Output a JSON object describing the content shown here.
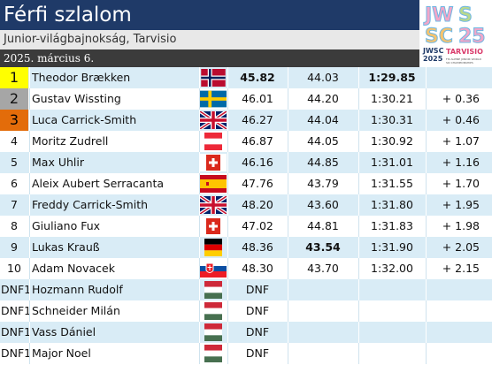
{
  "title": "Férfi szlalom",
  "subtitle": "Junior-világbajnokság, Tarvisio",
  "date": "2025. március 6.",
  "logo": {
    "top": "JWSC25",
    "line1": "JWSC",
    "line2": "2025",
    "text": "TARVISIO",
    "text2": "FIS ALPINE JUNIOR WORLD SKI CHAMPIONSHIPS"
  },
  "results": [
    {
      "rank": "1",
      "name": "Theodor Brækken",
      "flag": "norway",
      "run1": "45.82",
      "run2": "44.03",
      "total": "1:29.85",
      "diff": ""
    },
    {
      "rank": "2",
      "name": "Gustav Wissting",
      "flag": "sweden",
      "run1": "46.01",
      "run2": "44.20",
      "total": "1:30.21",
      "diff": "+ 0.36"
    },
    {
      "rank": "3",
      "name": "Luca Carrick-Smith",
      "flag": "uk",
      "run1": "46.27",
      "run2": "44.04",
      "total": "1:30.31",
      "diff": "+ 0.46"
    },
    {
      "rank": "4",
      "name": "Moritz Zudrell",
      "flag": "austria",
      "run1": "46.87",
      "run2": "44.05",
      "total": "1:30.92",
      "diff": "+ 1.07"
    },
    {
      "rank": "5",
      "name": "Max Uhlir",
      "flag": "switzerland",
      "run1": "46.16",
      "run2": "44.85",
      "total": "1:31.01",
      "diff": "+ 1.16"
    },
    {
      "rank": "6",
      "name": "Aleix Aubert Serracanta",
      "flag": "spain",
      "run1": "47.76",
      "run2": "43.79",
      "total": "1:31.55",
      "diff": "+ 1.70"
    },
    {
      "rank": "7",
      "name": "Freddy Carrick-Smith",
      "flag": "uk",
      "run1": "48.20",
      "run2": "43.60",
      "total": "1:31.80",
      "diff": "+ 1.95"
    },
    {
      "rank": "8",
      "name": "Giuliano Fux",
      "flag": "switzerland",
      "run1": "47.02",
      "run2": "44.81",
      "total": "1:31.83",
      "diff": "+ 1.98"
    },
    {
      "rank": "9",
      "name": "Lukas Krauß",
      "flag": "germany",
      "run1": "48.36",
      "run2": "43.54",
      "total": "1:31.90",
      "diff": "+ 2.05"
    },
    {
      "rank": "10",
      "name": "Adam Novacek",
      "flag": "slovakia",
      "run1": "48.30",
      "run2": "43.70",
      "total": "1:32.00",
      "diff": "+ 2.15"
    },
    {
      "rank": "DNF1",
      "name": "Hozmann Rudolf",
      "flag": "hungary",
      "run1": "DNF",
      "run2": "",
      "total": "",
      "diff": ""
    },
    {
      "rank": "DNF1",
      "name": "Schneider Milán",
      "flag": "hungary",
      "run1": "DNF",
      "run2": "",
      "total": "",
      "diff": ""
    },
    {
      "rank": "DNF1",
      "name": "Vass Dániel",
      "flag": "hungary",
      "run1": "DNF",
      "run2": "",
      "total": "",
      "diff": ""
    },
    {
      "rank": "DNF1",
      "name": "Major Noel",
      "flag": "hungary",
      "run1": "DNF",
      "run2": "",
      "total": "",
      "diff": ""
    }
  ],
  "medal_colors": {
    "gold": "#ffff00",
    "silver": "#a6a6a6",
    "bronze": "#e36c0a"
  },
  "colors": {
    "header": "#1f3a68",
    "row_alt": "#d9ecf6",
    "date_bar": "#3b3b3b"
  },
  "bold_best": {
    "run1_row": 0,
    "run2_row": 8,
    "total_row": 0
  }
}
